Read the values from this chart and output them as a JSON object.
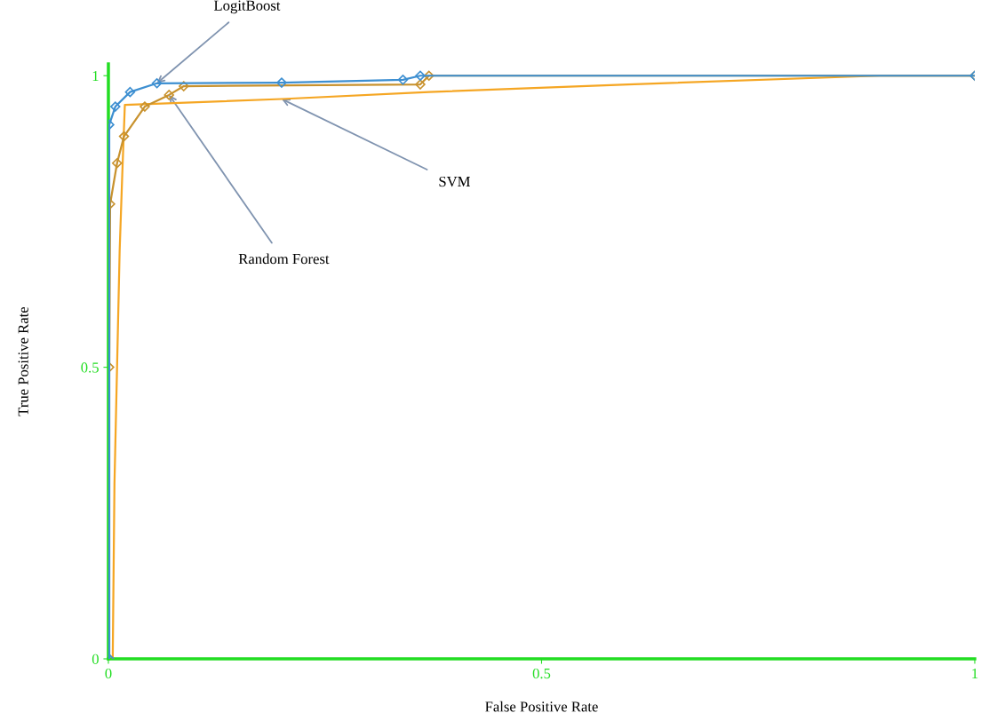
{
  "chart_data": {
    "type": "line",
    "xlabel": "False Positive Rate",
    "ylabel": "True Positive Rate",
    "xlim": [
      0,
      1
    ],
    "ylim": [
      0,
      1.02
    ],
    "xticks": [
      0,
      0.5,
      1
    ],
    "yticks": [
      0,
      0.5,
      1
    ],
    "grid": false,
    "legend": false,
    "line_style": "solid",
    "series": [
      {
        "color": "#3d8fd1",
        "marker": "diamond",
        "x": [
          0.001,
          0.001,
          0.008,
          0.025,
          0.056,
          0.2,
          0.34,
          0.36,
          1
        ],
        "values": [
          0,
          0.916,
          0.947,
          0.972,
          0.987,
          0.988,
          0.993,
          1.0,
          1.0
        ]
      },
      {
        "color": "#c8922e",
        "marker": "diamond",
        "x": [
          0.001,
          0.001,
          0.002,
          0.01,
          0.018,
          0.042,
          0.07,
          0.087,
          0.36,
          0.37,
          1
        ],
        "values": [
          0,
          0.5,
          0.78,
          0.85,
          0.896,
          0.947,
          0.967,
          0.982,
          0.985,
          1.0,
          1.0
        ]
      },
      {
        "color": "#f5a623",
        "marker": "none",
        "x": [
          0.005,
          0.007,
          0.01,
          0.013,
          0.016,
          0.019,
          0.04,
          0.2,
          0.37,
          0.6,
          0.89,
          1
        ],
        "values": [
          0,
          0.3,
          0.5,
          0.7,
          0.83,
          0.95,
          0.951,
          0.96,
          0.972,
          0.985,
          1.0,
          1.0
        ]
      }
    ],
    "annotations": [
      {
        "text": "LogitBoost",
        "x": 0.056,
        "y": 0.987
      },
      {
        "text": "Random Forest",
        "x": 0.07,
        "y": 0.967
      },
      {
        "text": "SVM",
        "x": 0.2,
        "y": 0.96
      }
    ]
  }
}
